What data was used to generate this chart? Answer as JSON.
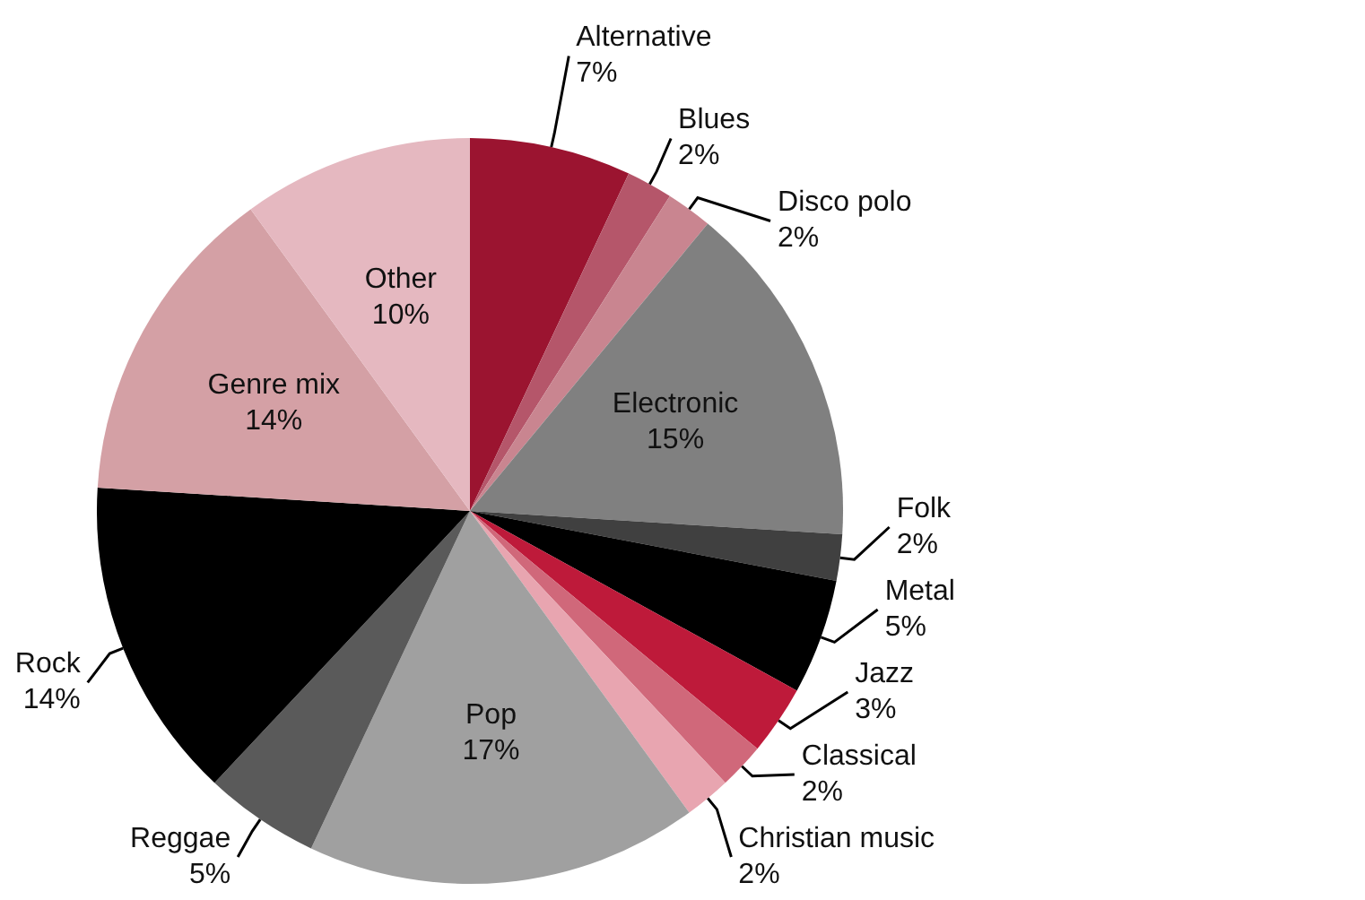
{
  "chart_data": {
    "type": "pie",
    "legend": false,
    "categories": [
      "Alternative",
      "Blues",
      "Disco polo",
      "Electronic",
      "Folk",
      "Metal",
      "Jazz",
      "Classical",
      "Christian music",
      "Pop",
      "Reggae",
      "Rock",
      "Genre mix",
      "Other"
    ],
    "values": [
      7,
      2,
      2,
      15,
      2,
      5,
      3,
      2,
      2,
      17,
      5,
      14,
      14,
      10
    ],
    "value_labels": [
      "7%",
      "2%",
      "2%",
      "15%",
      "2%",
      "5%",
      "3%",
      "2%",
      "2%",
      "17%",
      "5%",
      "14%",
      "14%",
      "10%"
    ],
    "colors": [
      "#9b1430",
      "#b5566a",
      "#c98590",
      "#808080",
      "#404040",
      "#000000",
      "#be1a3a",
      "#d0687a",
      "#e8a5b0",
      "#a0a0a0",
      "#5a5a5a",
      "#000000",
      "#d4a0a5",
      "#e5b8c0"
    ]
  }
}
